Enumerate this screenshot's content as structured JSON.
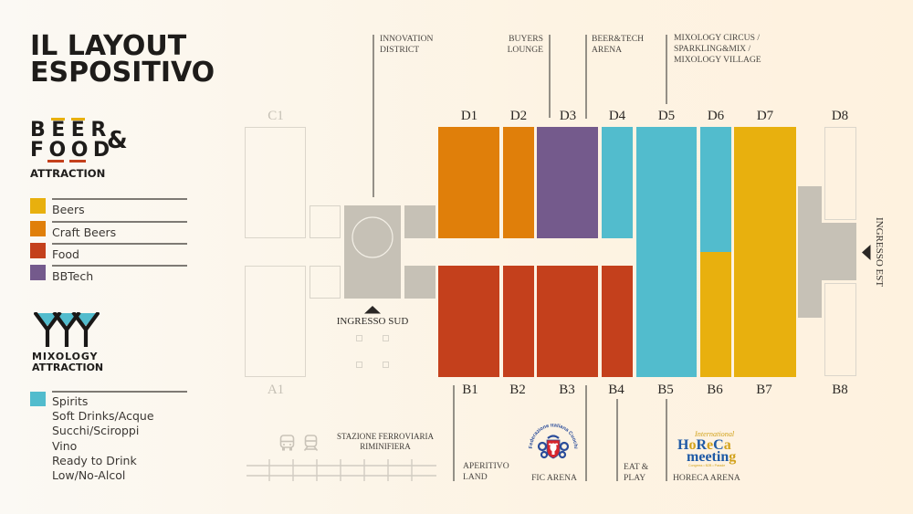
{
  "title": {
    "line1": "IL LAYOUT",
    "line2": "ESPOSITIVO"
  },
  "beer_food_logo": {
    "word1": "BEER",
    "ampersand": "&",
    "word2": "FOOD",
    "subtitle": "ATTRACTION",
    "bar_top_color": "#e8b00e",
    "bar_bottom_color": "#c4401c"
  },
  "beer_food_legend": [
    {
      "label": "Beers",
      "color": "#e8b00e"
    },
    {
      "label": "Craft Beers",
      "color": "#e07f0a"
    },
    {
      "label": "Food",
      "color": "#c4401c"
    },
    {
      "label": "BBTech",
      "color": "#745a8c"
    }
  ],
  "mixology_logo": {
    "line1": "MIXOLOGY",
    "line2": "ATTRACTION"
  },
  "mixology_legend": {
    "color": "#52bccd",
    "items": [
      "Spirits",
      "Soft Drinks/Acque",
      "Succhi/Sciroppi",
      "Vino",
      "Ready to Drink",
      "Low/No-Alcol"
    ]
  },
  "map": {
    "labels_top": [
      "C1",
      "D1",
      "D2",
      "D3",
      "D4",
      "D5",
      "D6",
      "D7",
      "D8"
    ],
    "labels_bottom": [
      "A1",
      "B1",
      "B2",
      "B3",
      "B4",
      "B5",
      "B6",
      "B7",
      "B8"
    ],
    "hall_categories": {
      "C1": null,
      "D1": "Craft Beers",
      "D2": "Craft Beers",
      "D3": "BBTech",
      "D4": "Spirits",
      "D5": "Spirits",
      "D6": "Spirits",
      "D7": "Beers",
      "D8": null,
      "A1": null,
      "B1": "Food",
      "B2": "Food",
      "B3": "Food",
      "B4": "Food",
      "B5": "Spirits",
      "B6": "Beers",
      "B7": "Beers",
      "B8": null
    },
    "callouts": {
      "innovation_district": [
        "INNOVATION",
        "DISTRICT"
      ],
      "buyers_lounge": [
        "BUYERS",
        "LOUNGE"
      ],
      "beer_tech_arena": [
        "BEER&TECH",
        "ARENA"
      ],
      "mixology_areas": [
        "MIXOLOGY CIRCUS /",
        "SPARKLING&MIX /",
        "MIXOLOGY VILLAGE"
      ],
      "aperitivo_land": [
        "APERITIVO",
        "LAND"
      ],
      "fic_arena": [
        "FIC ARENA"
      ],
      "eat_play": [
        "EAT &",
        "PLAY"
      ],
      "horeca_arena": [
        "HORECA ARENA"
      ]
    },
    "entrances": {
      "south": "INGRESSO SUD",
      "east": "INGRESSO EST"
    },
    "station": {
      "line1": "STAZIONE FERROVIARIA",
      "line2": "RIMINIFIERA"
    },
    "icons": {
      "bus": "bus-icon",
      "train": "train-icon",
      "south_entrance": "arrow-up-icon",
      "east_entrance": "arrow-left-icon"
    }
  },
  "logos": {
    "fic": {
      "text": "Federazione Italiana Cuochi",
      "red": "#d7262d",
      "blue": "#2a4c9a"
    },
    "horeca": {
      "script": "International",
      "word1": "HoReCa",
      "word2": "meeting",
      "tagline": "Congress • B2B • Parade",
      "blue": "#1f5aa6",
      "gold": "#d2a21c"
    }
  }
}
